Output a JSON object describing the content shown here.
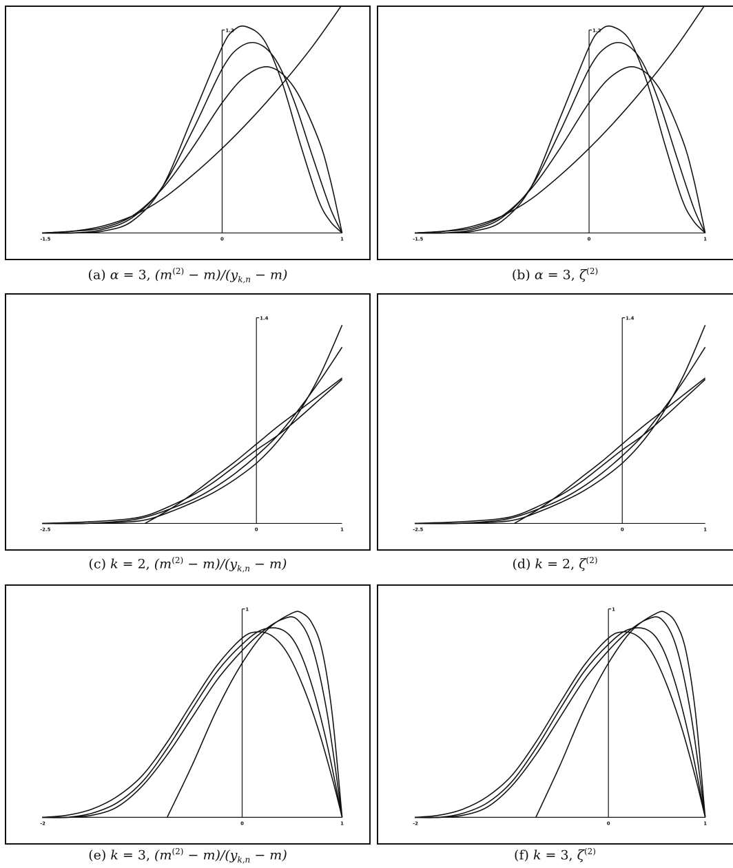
{
  "chart_data": [
    {
      "type": "line",
      "panel": "a",
      "caption": {
        "prefix": "(a) ",
        "var": "α",
        "eq": " = 3, ",
        "expr": "(m",
        "expr_sup": "(2)",
        "expr_mid": " − m)/(y",
        "expr_sub": "k,n",
        "expr_end": " − m)"
      },
      "xlim": [
        -1.5,
        1
      ],
      "ylim": [
        0,
        1.2
      ],
      "x_ticks": [
        "-1.5",
        "0",
        "1"
      ],
      "y_top_label": "1.2",
      "series": [
        {
          "x": [
            -1.5,
            -1.25,
            -1.0,
            -0.75,
            -0.5,
            -0.25,
            0,
            0.25,
            0.5,
            0.75,
            1.0
          ],
          "y": [
            0,
            0.01,
            0.04,
            0.1,
            0.2,
            0.34,
            0.5,
            0.68,
            0.88,
            1.1,
            1.35
          ]
        },
        {
          "x": [
            -1.5,
            -1.25,
            -1.0,
            -0.75,
            -0.5,
            -0.25,
            0,
            0.2,
            0.4,
            0.6,
            0.8,
            0.9,
            1.0
          ],
          "y": [
            0,
            0.01,
            0.03,
            0.1,
            0.26,
            0.5,
            0.77,
            0.93,
            0.98,
            0.86,
            0.56,
            0.32,
            0.0
          ]
        },
        {
          "x": [
            -1.5,
            -1.25,
            -1.0,
            -0.75,
            -0.5,
            -0.25,
            0,
            0.15,
            0.3,
            0.45,
            0.6,
            0.75,
            0.9,
            1.0
          ],
          "y": [
            0,
            0.0,
            0.02,
            0.09,
            0.27,
            0.6,
            0.97,
            1.1,
            1.12,
            1.02,
            0.78,
            0.46,
            0.15,
            0.0
          ]
        },
        {
          "x": [
            -1.5,
            -1.25,
            -1.0,
            -0.75,
            -0.5,
            -0.25,
            0,
            0.1,
            0.2,
            0.35,
            0.5,
            0.65,
            0.8,
            0.9,
            1.0
          ],
          "y": [
            0,
            0.0,
            0.01,
            0.07,
            0.27,
            0.68,
            1.1,
            1.2,
            1.22,
            1.14,
            0.89,
            0.53,
            0.2,
            0.07,
            0.0
          ]
        }
      ]
    },
    {
      "type": "line",
      "panel": "b",
      "caption": {
        "prefix": "(b) ",
        "var": "α",
        "eq": " = 3, ",
        "expr": "ζ",
        "expr_sup": "(2)",
        "expr_mid": "",
        "expr_sub": "",
        "expr_end": ""
      },
      "xlim": [
        -1.5,
        1
      ],
      "ylim": [
        0,
        1.2
      ],
      "x_ticks": [
        "-1.5",
        "0",
        "1"
      ],
      "y_top_label": "1.2",
      "series": [
        {
          "x": [
            -1.5,
            -1.25,
            -1.0,
            -0.75,
            -0.5,
            -0.25,
            0,
            0.25,
            0.5,
            0.75,
            1.0
          ],
          "y": [
            0,
            0.01,
            0.04,
            0.1,
            0.2,
            0.34,
            0.5,
            0.68,
            0.88,
            1.1,
            1.35
          ]
        },
        {
          "x": [
            -1.5,
            -1.25,
            -1.0,
            -0.75,
            -0.5,
            -0.25,
            0,
            0.2,
            0.4,
            0.6,
            0.8,
            0.9,
            1.0
          ],
          "y": [
            0,
            0.01,
            0.03,
            0.1,
            0.26,
            0.5,
            0.77,
            0.93,
            0.98,
            0.86,
            0.56,
            0.32,
            0.0
          ]
        },
        {
          "x": [
            -1.5,
            -1.25,
            -1.0,
            -0.75,
            -0.5,
            -0.25,
            0,
            0.15,
            0.3,
            0.45,
            0.6,
            0.75,
            0.9,
            1.0
          ],
          "y": [
            0,
            0.0,
            0.02,
            0.09,
            0.27,
            0.6,
            0.97,
            1.1,
            1.12,
            1.02,
            0.78,
            0.46,
            0.15,
            0.0
          ]
        },
        {
          "x": [
            -1.5,
            -1.25,
            -1.0,
            -0.75,
            -0.5,
            -0.25,
            0,
            0.1,
            0.2,
            0.35,
            0.5,
            0.65,
            0.8,
            0.9,
            1.0
          ],
          "y": [
            0,
            0.0,
            0.01,
            0.07,
            0.27,
            0.68,
            1.1,
            1.2,
            1.22,
            1.14,
            0.89,
            0.53,
            0.2,
            0.07,
            0.0
          ]
        }
      ]
    },
    {
      "type": "line",
      "panel": "c",
      "caption": {
        "prefix": "(c) ",
        "var": "k",
        "eq": " = 2, ",
        "expr": "(m",
        "expr_sup": "(2)",
        "expr_mid": " − m)/(y",
        "expr_sub": "k,n",
        "expr_end": " − m)"
      },
      "xlim": [
        -2.5,
        1
      ],
      "ylim": [
        0,
        1.4
      ],
      "x_ticks": [
        "-2.5",
        "0",
        "1"
      ],
      "y_top_label": "1.4",
      "series": [
        {
          "x": [
            -2.5,
            -2.0,
            -1.5,
            -1.25,
            -1.0,
            -0.75,
            -0.5,
            -0.25,
            0,
            0.25,
            0.5,
            0.75,
            1.0
          ],
          "y": [
            0,
            0.01,
            0.03,
            0.06,
            0.12,
            0.19,
            0.28,
            0.39,
            0.5,
            0.6,
            0.72,
            0.85,
            0.98
          ]
        },
        {
          "x": [
            -2.5,
            -2.0,
            -1.5,
            -1.25,
            -1.0,
            -0.75,
            -0.5,
            -0.25,
            0,
            0.25,
            0.5,
            0.75,
            1.0
          ],
          "y": [
            0,
            0.0,
            0.02,
            0.05,
            0.1,
            0.16,
            0.24,
            0.34,
            0.46,
            0.6,
            0.78,
            0.98,
            1.2
          ]
        },
        {
          "x": [
            -2.5,
            -2.0,
            -1.5,
            -1.25,
            -1.0,
            -0.75,
            -0.5,
            -0.25,
            0,
            0.25,
            0.5,
            0.75,
            1.0
          ],
          "y": [
            0,
            0.0,
            0.01,
            0.03,
            0.08,
            0.14,
            0.21,
            0.3,
            0.41,
            0.56,
            0.76,
            1.02,
            1.35
          ]
        },
        {
          "x": [
            -1.3,
            -1.0,
            -0.75,
            -0.5,
            -0.25,
            0,
            0.25,
            0.5,
            0.75,
            1.0
          ],
          "y": [
            0,
            0.1,
            0.2,
            0.31,
            0.42,
            0.54,
            0.66,
            0.77,
            0.88,
            0.99
          ]
        }
      ]
    },
    {
      "type": "line",
      "panel": "d",
      "caption": {
        "prefix": "(d) ",
        "var": "k",
        "eq": " = 2, ",
        "expr": "ζ",
        "expr_sup": "(2)",
        "expr_mid": "",
        "expr_sub": "",
        "expr_end": ""
      },
      "xlim": [
        -2.5,
        1
      ],
      "ylim": [
        0,
        1.4
      ],
      "x_ticks": [
        "-2.5",
        "0",
        "1"
      ],
      "y_top_label": "1.4",
      "series": [
        {
          "x": [
            -2.5,
            -2.0,
            -1.5,
            -1.25,
            -1.0,
            -0.75,
            -0.5,
            -0.25,
            0,
            0.25,
            0.5,
            0.75,
            1.0
          ],
          "y": [
            0,
            0.01,
            0.03,
            0.06,
            0.12,
            0.19,
            0.28,
            0.39,
            0.5,
            0.6,
            0.72,
            0.85,
            0.98
          ]
        },
        {
          "x": [
            -2.5,
            -2.0,
            -1.5,
            -1.25,
            -1.0,
            -0.75,
            -0.5,
            -0.25,
            0,
            0.25,
            0.5,
            0.75,
            1.0
          ],
          "y": [
            0,
            0.0,
            0.02,
            0.05,
            0.1,
            0.16,
            0.24,
            0.34,
            0.46,
            0.6,
            0.78,
            0.98,
            1.2
          ]
        },
        {
          "x": [
            -2.5,
            -2.0,
            -1.5,
            -1.25,
            -1.0,
            -0.75,
            -0.5,
            -0.25,
            0,
            0.25,
            0.5,
            0.75,
            1.0
          ],
          "y": [
            0,
            0.0,
            0.01,
            0.03,
            0.08,
            0.14,
            0.21,
            0.3,
            0.41,
            0.56,
            0.76,
            1.02,
            1.35
          ]
        },
        {
          "x": [
            -1.3,
            -1.0,
            -0.75,
            -0.5,
            -0.25,
            0,
            0.25,
            0.5,
            0.75,
            1.0
          ],
          "y": [
            0,
            0.1,
            0.2,
            0.31,
            0.42,
            0.54,
            0.66,
            0.77,
            0.88,
            0.99
          ]
        }
      ]
    },
    {
      "type": "line",
      "panel": "e",
      "caption": {
        "prefix": "(e) ",
        "var": "k",
        "eq": " = 3, ",
        "expr": "(m",
        "expr_sup": "(2)",
        "expr_mid": " − m)/(y",
        "expr_sub": "k,n",
        "expr_end": " − m)"
      },
      "xlim": [
        -2,
        1
      ],
      "ylim": [
        0,
        1
      ],
      "x_ticks": [
        "-2",
        "0",
        "1"
      ],
      "y_top_label": "1",
      "series": [
        {
          "x": [
            -2.0,
            -1.75,
            -1.5,
            -1.25,
            -1.0,
            -0.75,
            -0.5,
            -0.25,
            0,
            0.15,
            0.3,
            0.45,
            0.6,
            0.75,
            0.9,
            1.0
          ],
          "y": [
            0,
            0.01,
            0.04,
            0.1,
            0.2,
            0.36,
            0.55,
            0.73,
            0.86,
            0.89,
            0.87,
            0.79,
            0.64,
            0.44,
            0.19,
            0.0
          ]
        },
        {
          "x": [
            -2.0,
            -1.75,
            -1.5,
            -1.25,
            -1.0,
            -0.75,
            -0.5,
            -0.25,
            0,
            0.2,
            0.4,
            0.55,
            0.7,
            0.85,
            1.0
          ],
          "y": [
            0,
            0.0,
            0.02,
            0.07,
            0.17,
            0.33,
            0.52,
            0.7,
            0.83,
            0.9,
            0.9,
            0.82,
            0.63,
            0.35,
            0.0
          ]
        },
        {
          "x": [
            -2.0,
            -1.75,
            -1.5,
            -1.25,
            -1.0,
            -0.75,
            -0.5,
            -0.25,
            0,
            0.2,
            0.4,
            0.55,
            0.7,
            0.85,
            1.0
          ],
          "y": [
            0,
            0.0,
            0.01,
            0.05,
            0.15,
            0.3,
            0.48,
            0.66,
            0.8,
            0.89,
            0.95,
            0.95,
            0.82,
            0.5,
            0.0
          ]
        },
        {
          "x": [
            -0.75,
            -0.5,
            -0.25,
            0,
            0.25,
            0.5,
            0.6,
            0.7,
            0.8,
            0.9,
            1.0
          ],
          "y": [
            0,
            0.25,
            0.52,
            0.74,
            0.9,
            0.98,
            0.98,
            0.93,
            0.8,
            0.5,
            0.0
          ]
        }
      ]
    },
    {
      "type": "line",
      "panel": "f",
      "caption": {
        "prefix": "(f) ",
        "var": "k",
        "eq": " = 3, ",
        "expr": "ζ",
        "expr_sup": "(2)",
        "expr_mid": "",
        "expr_sub": "",
        "expr_end": ""
      },
      "xlim": [
        -2,
        1
      ],
      "ylim": [
        0,
        1
      ],
      "x_ticks": [
        "-2",
        "0",
        "1"
      ],
      "y_top_label": "1",
      "series": [
        {
          "x": [
            -2.0,
            -1.75,
            -1.5,
            -1.25,
            -1.0,
            -0.75,
            -0.5,
            -0.25,
            0,
            0.15,
            0.3,
            0.45,
            0.6,
            0.75,
            0.9,
            1.0
          ],
          "y": [
            0,
            0.01,
            0.04,
            0.1,
            0.2,
            0.36,
            0.55,
            0.73,
            0.86,
            0.89,
            0.87,
            0.79,
            0.64,
            0.44,
            0.19,
            0.0
          ]
        },
        {
          "x": [
            -2.0,
            -1.75,
            -1.5,
            -1.25,
            -1.0,
            -0.75,
            -0.5,
            -0.25,
            0,
            0.2,
            0.4,
            0.55,
            0.7,
            0.85,
            1.0
          ],
          "y": [
            0,
            0.0,
            0.02,
            0.07,
            0.17,
            0.33,
            0.52,
            0.7,
            0.83,
            0.9,
            0.9,
            0.82,
            0.63,
            0.35,
            0.0
          ]
        },
        {
          "x": [
            -2.0,
            -1.75,
            -1.5,
            -1.25,
            -1.0,
            -0.75,
            -0.5,
            -0.25,
            0,
            0.2,
            0.4,
            0.55,
            0.7,
            0.85,
            1.0
          ],
          "y": [
            0,
            0.0,
            0.01,
            0.05,
            0.15,
            0.3,
            0.48,
            0.66,
            0.8,
            0.89,
            0.95,
            0.95,
            0.82,
            0.5,
            0.0
          ]
        },
        {
          "x": [
            -0.75,
            -0.5,
            -0.25,
            0,
            0.25,
            0.5,
            0.6,
            0.7,
            0.8,
            0.9,
            1.0
          ],
          "y": [
            0,
            0.25,
            0.52,
            0.74,
            0.9,
            0.98,
            0.98,
            0.93,
            0.8,
            0.5,
            0.0
          ]
        }
      ]
    }
  ]
}
